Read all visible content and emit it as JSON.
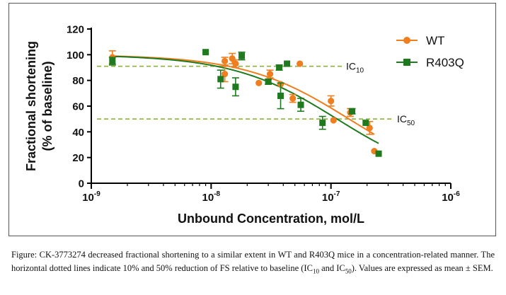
{
  "chart_data": {
    "type": "scatter",
    "xlabel": "Unbound Concentration, mol/L",
    "ylabel_line1": "Fractional shortening",
    "ylabel_line2": "(% of baseline)",
    "x_scale": "log",
    "xlim": [
      1e-09,
      1e-06
    ],
    "ylim": [
      0,
      120
    ],
    "x_tick_exponents": [
      "-9",
      "-8",
      "-7",
      "-6"
    ],
    "x_tick_base": "10",
    "y_ticks": [
      0,
      20,
      40,
      60,
      80,
      100,
      120
    ],
    "legend_position": "top-right",
    "reference_lines": [
      {
        "value": 91,
        "label_main": "IC",
        "label_sub": "10"
      },
      {
        "value": 50,
        "label_main": "IC",
        "label_sub": "50"
      }
    ],
    "series": [
      {
        "name": "WT",
        "color": "#f07d1e",
        "marker": "circle",
        "points": [
          {
            "x": 1.5e-09,
            "y": 98,
            "err": 5
          },
          {
            "x": 1.3e-08,
            "y": 95,
            "err": 3
          },
          {
            "x": 1.3e-08,
            "y": 85,
            "err": 6
          },
          {
            "x": 1.5e-08,
            "y": 97,
            "err": 4
          },
          {
            "x": 1.6e-08,
            "y": 93,
            "err": 3
          },
          {
            "x": 2.5e-08,
            "y": 78,
            "err": 0
          },
          {
            "x": 3.1e-08,
            "y": 85,
            "err": 3
          },
          {
            "x": 3.8e-08,
            "y": 77,
            "err": 0
          },
          {
            "x": 4.8e-08,
            "y": 66,
            "err": 3
          },
          {
            "x": 5.5e-08,
            "y": 93,
            "err": 0
          },
          {
            "x": 1e-07,
            "y": 64,
            "err": 4
          },
          {
            "x": 1.05e-07,
            "y": 49,
            "err": 0
          },
          {
            "x": 1.45e-07,
            "y": 55,
            "err": 3
          },
          {
            "x": 2.1e-07,
            "y": 43,
            "err": 5
          },
          {
            "x": 2.3e-07,
            "y": 25,
            "err": 0
          }
        ],
        "fit": {
          "top": 100,
          "bottom": 0,
          "log_ic50": -6.85,
          "hill": 1
        }
      },
      {
        "name": "R403Q",
        "color": "#1f7a1f",
        "marker": "square",
        "points": [
          {
            "x": 1.5e-09,
            "y": 95,
            "err": 3
          },
          {
            "x": 9e-09,
            "y": 102,
            "err": 0
          },
          {
            "x": 1.2e-08,
            "y": 81,
            "err": 7
          },
          {
            "x": 1.6e-08,
            "y": 75,
            "err": 7
          },
          {
            "x": 1.8e-08,
            "y": 99,
            "err": 3
          },
          {
            "x": 3e-08,
            "y": 79,
            "err": 2
          },
          {
            "x": 3.7e-08,
            "y": 90,
            "err": 2
          },
          {
            "x": 3.8e-08,
            "y": 68,
            "err": 10
          },
          {
            "x": 4.3e-08,
            "y": 93,
            "err": 0
          },
          {
            "x": 5.6e-08,
            "y": 61,
            "err": 5
          },
          {
            "x": 8.5e-08,
            "y": 47,
            "err": 5
          },
          {
            "x": 1.5e-07,
            "y": 56,
            "err": 2
          },
          {
            "x": 1.95e-07,
            "y": 47,
            "err": 0
          },
          {
            "x": 2.5e-07,
            "y": 23,
            "err": 0
          }
        ],
        "fit": {
          "top": 100,
          "bottom": 0,
          "log_ic50": -6.95,
          "hill": 1
        }
      }
    ]
  },
  "caption": {
    "part1": "Figure: CK-3773274 decreased fractional shortening to a similar extent in WT and R403Q mice in a concentration-related manner. The horizontal dotted lines indicate 10% and 50% reduction of FS relative to baseline (IC",
    "sub1": "10",
    "part2": " and IC",
    "sub2": "50",
    "part3": ").  Values are expressed as mean ± SEM."
  }
}
